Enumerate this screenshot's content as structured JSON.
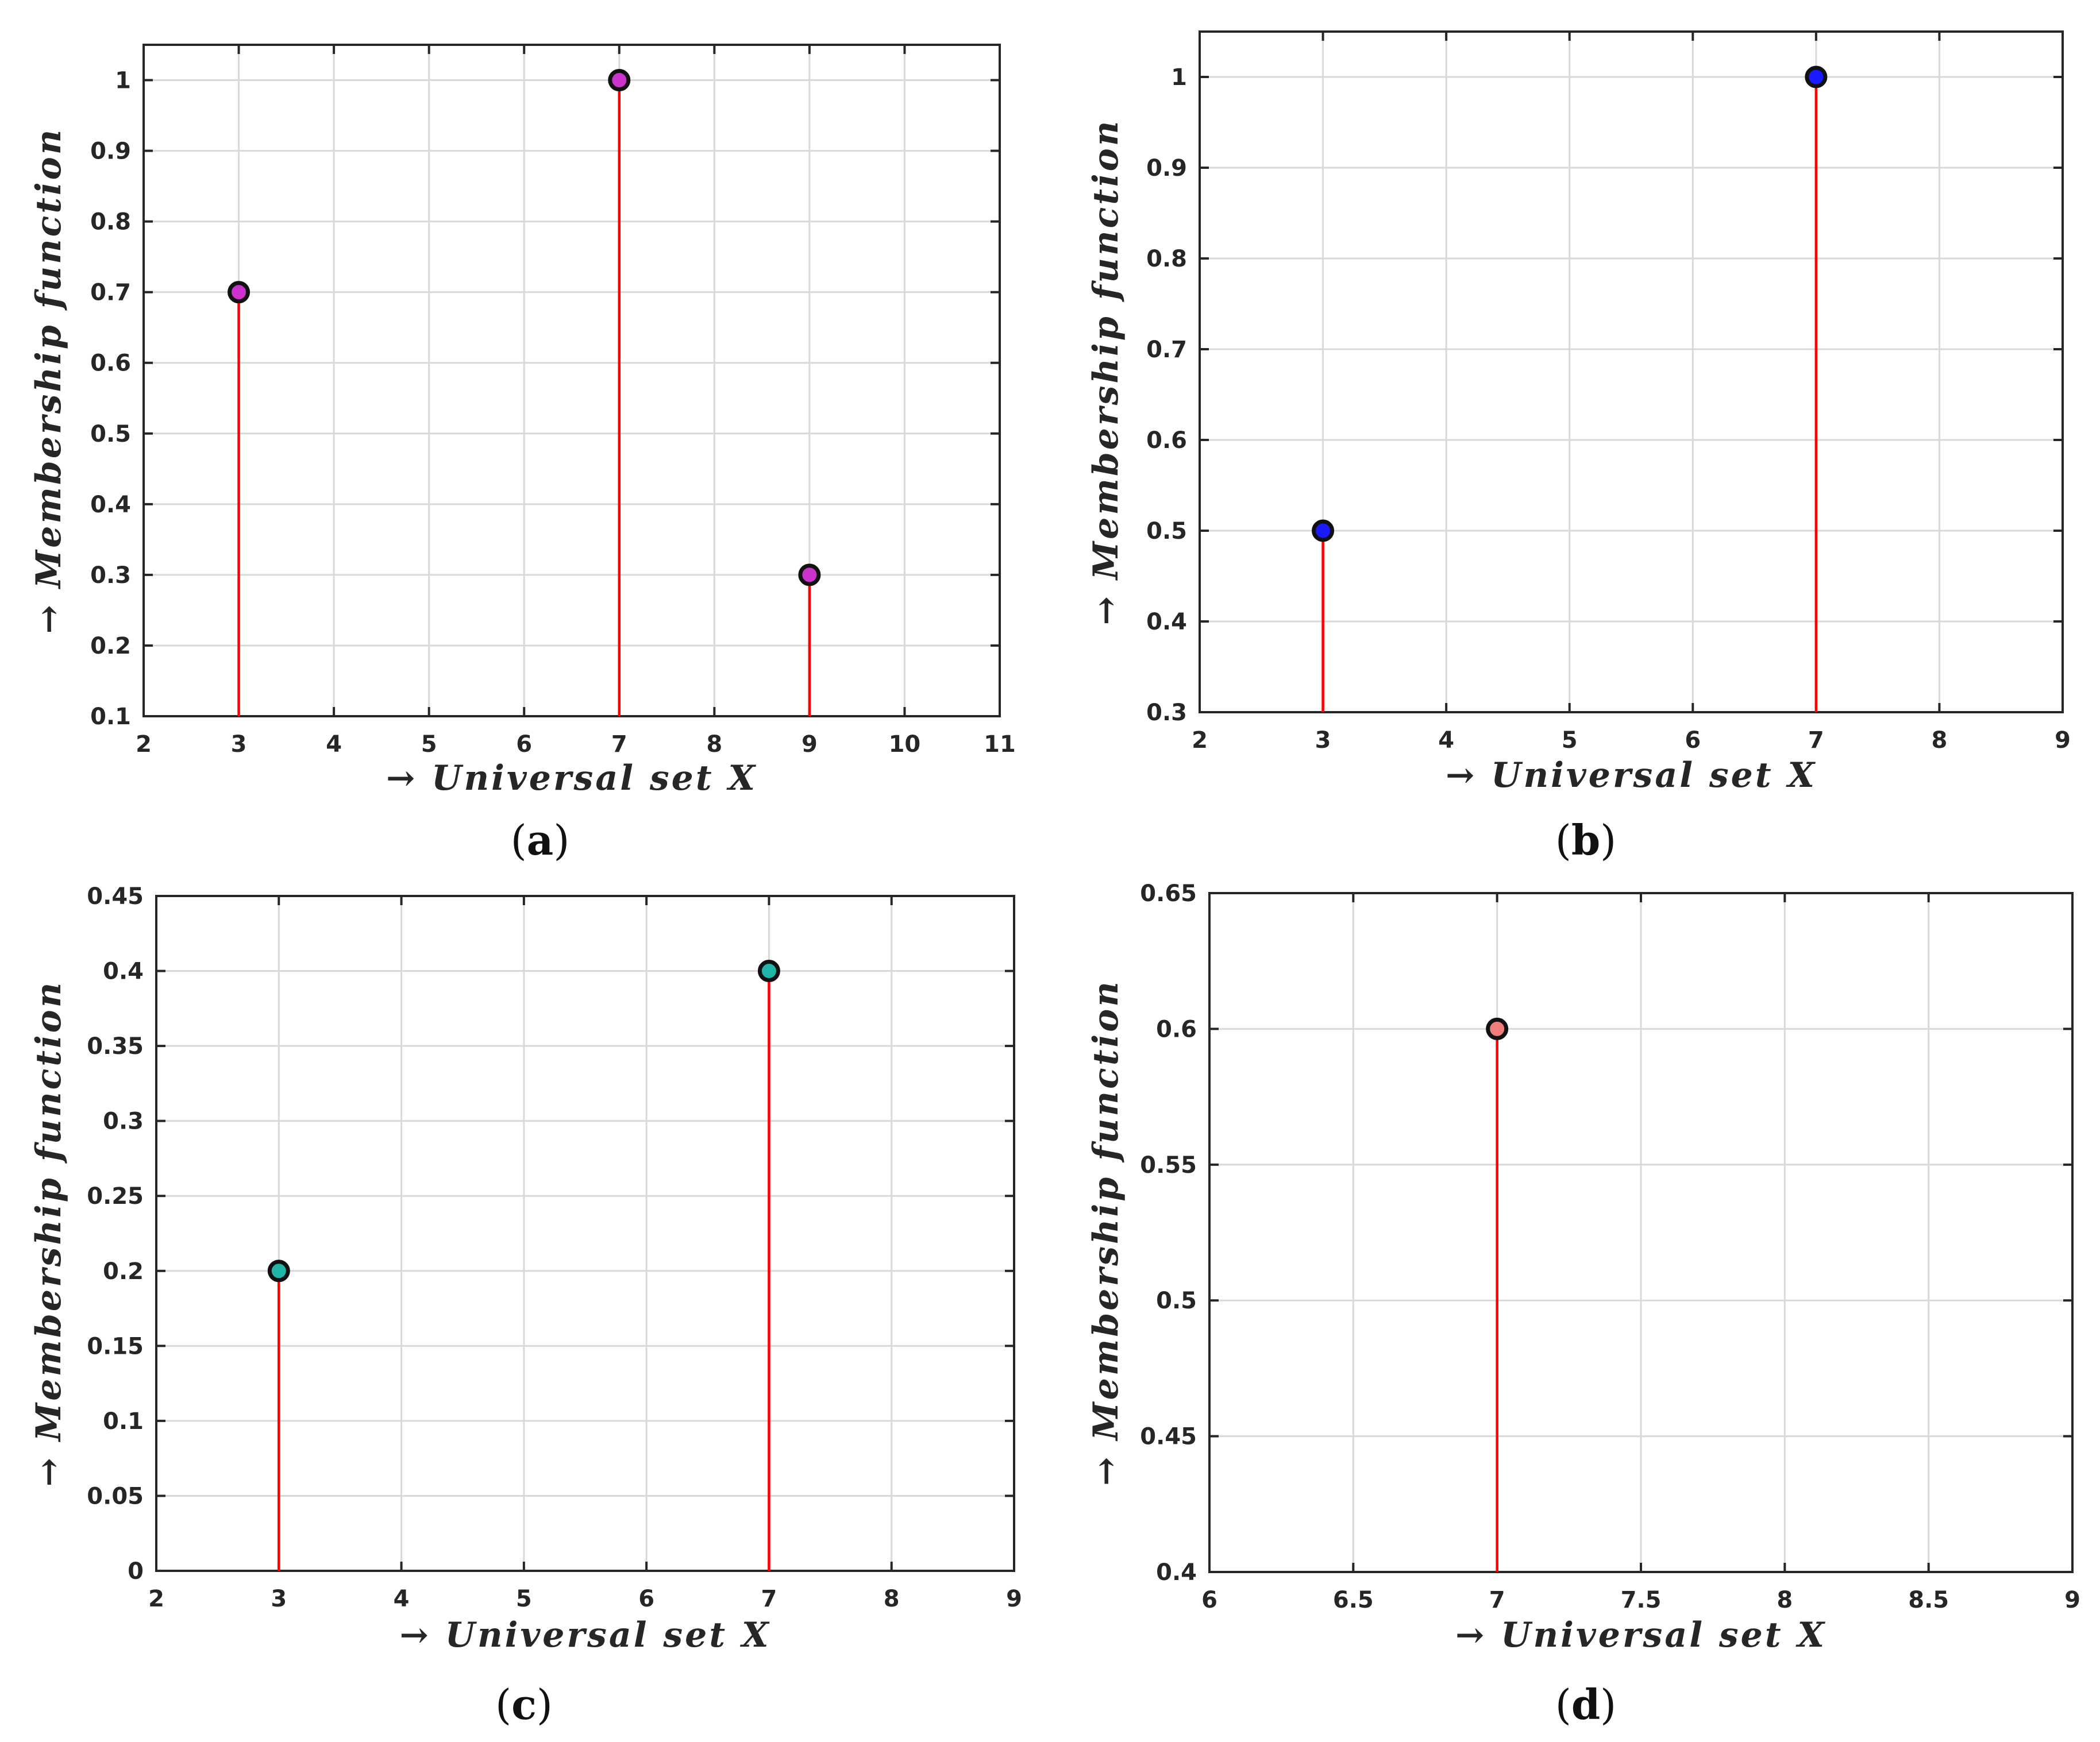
{
  "colors": {
    "stem": "#ff0000",
    "grid": "#d9d9d9",
    "axis": "#262626"
  },
  "chart_data": [
    {
      "type": "stem",
      "panel": "a",
      "caption": {
        "open": "(",
        "letter": "a",
        "close": ")"
      },
      "xlabel": "→ Universal set X",
      "ylabel": "→ Membership function",
      "xlim": [
        2,
        11
      ],
      "ylim": [
        0.1,
        1.05
      ],
      "xticks": [
        2,
        3,
        4,
        5,
        6,
        7,
        8,
        9,
        10,
        11
      ],
      "yticks": [
        0.1,
        0.2,
        0.3,
        0.4,
        0.5,
        0.6,
        0.7,
        0.8,
        0.9,
        1
      ],
      "ytick_labels": [
        "0.1",
        "0.2",
        "0.3",
        "0.4",
        "0.5",
        "0.6",
        "0.7",
        "0.8",
        "0.9",
        "1"
      ],
      "x": [
        3,
        7,
        9
      ],
      "y": [
        0.7,
        1.0,
        0.3
      ],
      "marker_color": "#cc33cc",
      "grid": true
    },
    {
      "type": "stem",
      "panel": "b",
      "caption": {
        "open": "(",
        "letter": "b",
        "close": ")"
      },
      "xlabel": "→ Universal set X",
      "ylabel": "→ Membership function",
      "xlim": [
        2,
        9
      ],
      "ylim": [
        0.3,
        1.05
      ],
      "xticks": [
        2,
        3,
        4,
        5,
        6,
        7,
        8,
        9
      ],
      "yticks": [
        0.3,
        0.4,
        0.5,
        0.6,
        0.7,
        0.8,
        0.9,
        1
      ],
      "ytick_labels": [
        "0.3",
        "0.4",
        "0.5",
        "0.6",
        "0.7",
        "0.8",
        "0.9",
        "1"
      ],
      "x": [
        3,
        7
      ],
      "y": [
        0.5,
        1.0
      ],
      "marker_color": "#1a1aff",
      "grid": true
    },
    {
      "type": "stem",
      "panel": "c",
      "caption": {
        "open": "(",
        "letter": "c",
        "close": ")"
      },
      "xlabel": "→ Universal set X",
      "ylabel": "→ Membership function",
      "xlim": [
        2,
        9
      ],
      "ylim": [
        0,
        0.45
      ],
      "xticks": [
        2,
        3,
        4,
        5,
        6,
        7,
        8,
        9
      ],
      "yticks": [
        0,
        0.05,
        0.1,
        0.15,
        0.2,
        0.25,
        0.3,
        0.35,
        0.4,
        0.45
      ],
      "ytick_labels": [
        "0",
        "0.05",
        "0.1",
        "0.15",
        "0.2",
        "0.25",
        "0.3",
        "0.35",
        "0.4",
        "0.45"
      ],
      "x": [
        3,
        7
      ],
      "y": [
        0.2,
        0.4
      ],
      "marker_color": "#1fb5a8",
      "grid": true
    },
    {
      "type": "stem",
      "panel": "d",
      "caption": {
        "open": "(",
        "letter": "d",
        "close": ")"
      },
      "xlabel": "→ Universal set X",
      "ylabel": "→ Membership function",
      "xlim": [
        6,
        9
      ],
      "ylim": [
        0.4,
        0.65
      ],
      "xticks": [
        6,
        6.5,
        7,
        7.5,
        8,
        8.5,
        9
      ],
      "xtick_labels": [
        "6",
        "6.5",
        "7",
        "7.5",
        "8",
        "8.5",
        "9"
      ],
      "yticks": [
        0.4,
        0.45,
        0.5,
        0.55,
        0.6,
        0.65
      ],
      "ytick_labels": [
        "0.4",
        "0.45",
        "0.5",
        "0.55",
        "0.6",
        "0.65"
      ],
      "x": [
        7
      ],
      "y": [
        0.6
      ],
      "marker_color": "#f07c7c",
      "grid": true
    }
  ]
}
